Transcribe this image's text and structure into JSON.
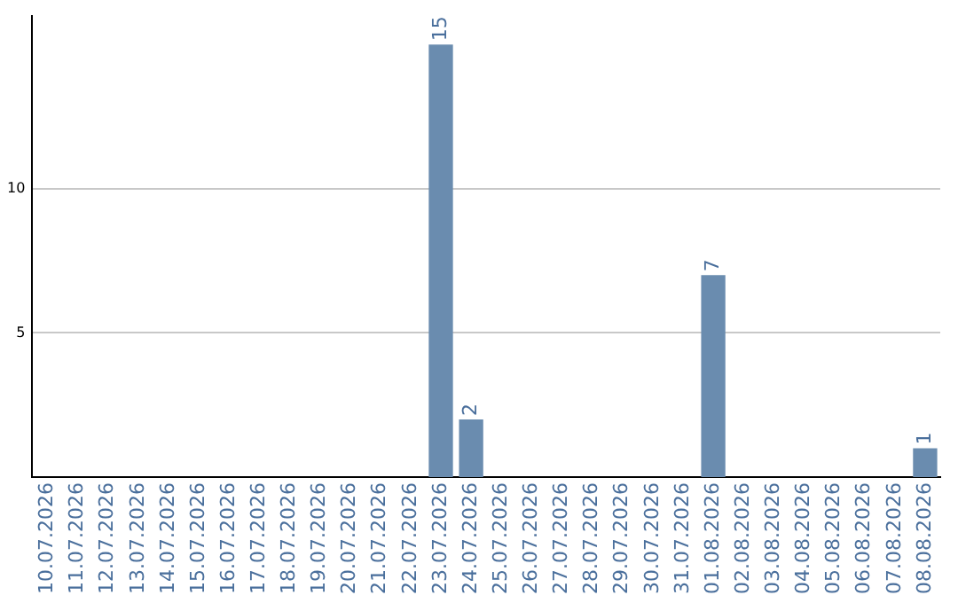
{
  "chart_data": {
    "type": "bar",
    "categories": [
      "10.07.2026",
      "11.07.2026",
      "12.07.2026",
      "13.07.2026",
      "14.07.2026",
      "15.07.2026",
      "16.07.2026",
      "17.07.2026",
      "18.07.2026",
      "19.07.2026",
      "20.07.2026",
      "21.07.2026",
      "22.07.2026",
      "23.07.2026",
      "24.07.2026",
      "25.07.2026",
      "26.07.2026",
      "27.07.2026",
      "28.07.2026",
      "29.07.2026",
      "30.07.2026",
      "31.07.2026",
      "01.08.2026",
      "02.08.2026",
      "03.08.2026",
      "04.08.2026",
      "05.08.2026",
      "06.08.2026",
      "07.08.2026",
      "08.08.2026"
    ],
    "values": [
      0,
      0,
      0,
      0,
      0,
      0,
      0,
      0,
      0,
      0,
      0,
      0,
      0,
      15,
      2,
      0,
      0,
      0,
      0,
      0,
      0,
      0,
      7,
      0,
      0,
      0,
      0,
      0,
      0,
      1
    ],
    "value_labels": [
      null,
      null,
      null,
      null,
      null,
      null,
      null,
      null,
      null,
      null,
      null,
      null,
      null,
      "15",
      "2",
      null,
      null,
      null,
      null,
      null,
      null,
      null,
      "7",
      null,
      null,
      null,
      null,
      null,
      null,
      "1"
    ],
    "color": "#6a8caf",
    "ylim": [
      0,
      16
    ],
    "yticks": [
      5,
      10
    ],
    "grid": "y",
    "legend": false
  }
}
